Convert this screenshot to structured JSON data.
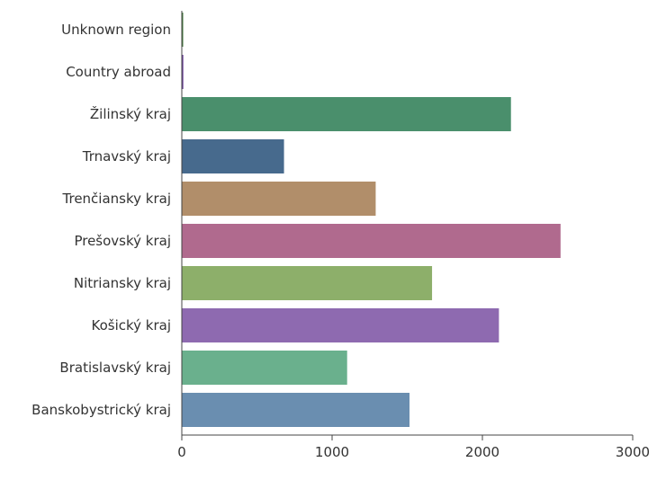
{
  "chart_data": {
    "type": "bar",
    "orientation": "horizontal",
    "title": "",
    "xlabel": "",
    "ylabel": "",
    "xlim": [
      0,
      3000
    ],
    "xticks": [
      0,
      1000,
      2000,
      3000
    ],
    "grid": false,
    "categories": [
      "Unknown region",
      "Country abroad",
      "Žilinský kraj",
      "Trnavský kraj",
      "Trenčiansky kraj",
      "Prešovský kraj",
      "Nitriansky kraj",
      "Košický kraj",
      "Bratislavský kraj",
      "Banskobystrický kraj"
    ],
    "values": [
      8,
      10,
      2190,
      680,
      1290,
      2520,
      1665,
      2110,
      1100,
      1515
    ],
    "colors": [
      "#3f7a3a",
      "#6a3f9a",
      "#4a8f6c",
      "#476a8d",
      "#b18e6a",
      "#b06a8e",
      "#8daf6a",
      "#8e6ab0",
      "#6ab08d",
      "#6a8eb0"
    ]
  }
}
